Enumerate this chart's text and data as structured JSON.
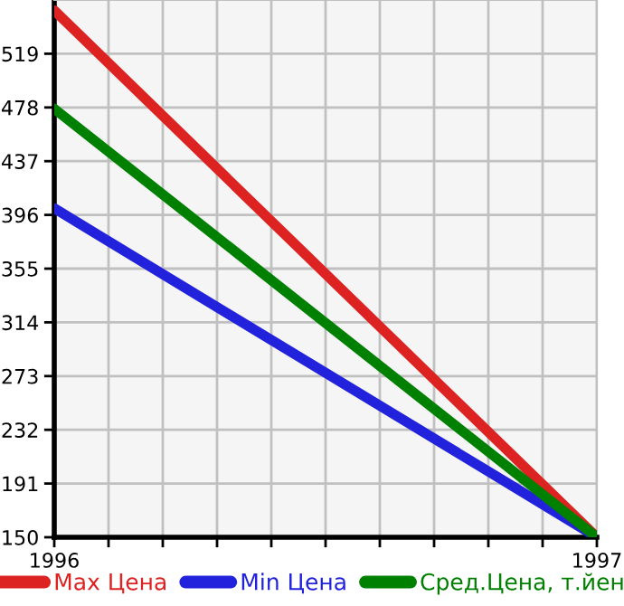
{
  "chart_data": {
    "type": "line",
    "x": [
      1996,
      1997
    ],
    "series": [
      {
        "name": "Max Цена",
        "color": "#dd2222",
        "values": [
          552,
          150
        ]
      },
      {
        "name": "Min Цена",
        "color": "#2222dd",
        "values": [
          401,
          150
        ]
      },
      {
        "name": "Сред.Цена, т.йен",
        "color": "#008000",
        "values": [
          477,
          150
        ]
      }
    ],
    "xlim": [
      1996,
      1997
    ],
    "ylim": [
      150,
      560
    ],
    "xticks": [
      1996,
      {
        "value": 1996.1,
        "label": null
      },
      {
        "value": 1996.2,
        "label": null
      },
      {
        "value": 1996.3,
        "label": null
      },
      {
        "value": 1996.4,
        "label": null
      },
      {
        "value": 1996.5,
        "label": null
      },
      {
        "value": 1996.6,
        "label": null
      },
      {
        "value": 1996.7,
        "label": null
      },
      {
        "value": 1996.8,
        "label": null
      },
      {
        "value": 1996.9,
        "label": null
      },
      1997
    ],
    "yticks": [
      150,
      191,
      232,
      273,
      314,
      355,
      396,
      437,
      478,
      519
    ],
    "grid": true,
    "legend": "bottom",
    "marker": "none",
    "line_style": "solid"
  }
}
